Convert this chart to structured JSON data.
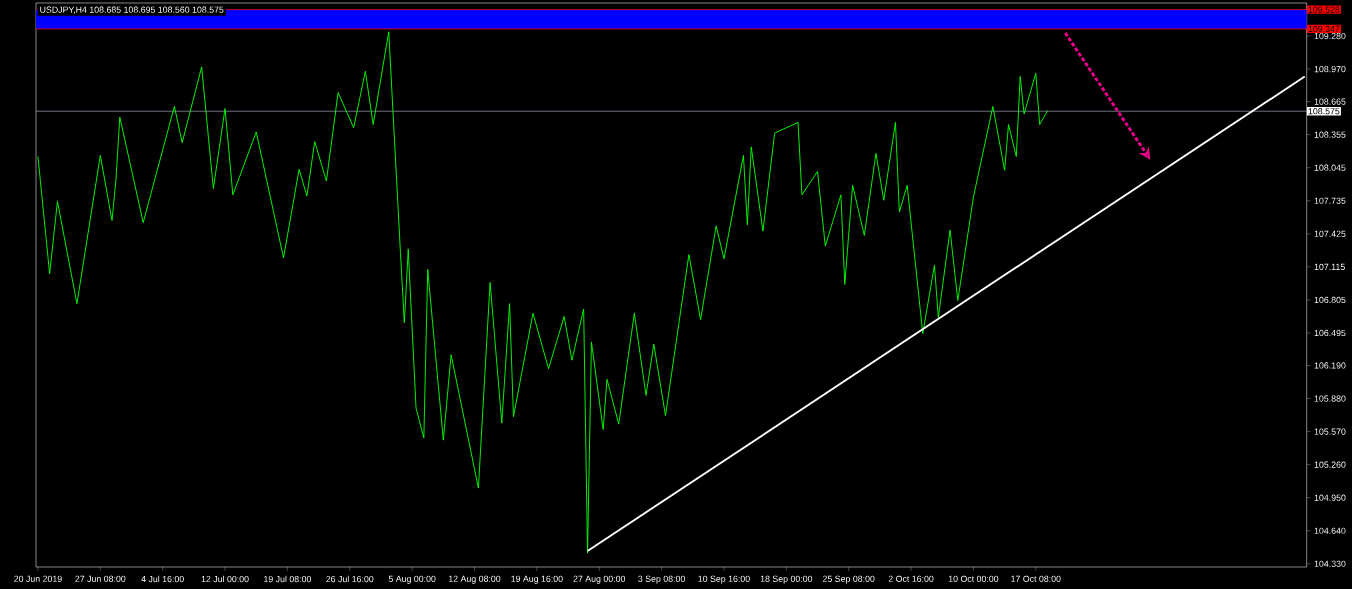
{
  "chart_data": {
    "type": "line",
    "title": "USDJPY,H4 108.685 108.695 108.560 108.575",
    "categories": [
      "20 Jun 2019",
      null,
      null,
      null,
      null,
      null,
      null,
      null,
      null,
      null,
      null,
      null,
      null,
      null,
      null,
      null,
      "27 Jun 08:00",
      null,
      null,
      null,
      null,
      null,
      null,
      null,
      null,
      null,
      null,
      null,
      null,
      null,
      null,
      null,
      "4 Jul 16:00",
      null,
      null,
      null,
      null,
      null,
      null,
      null,
      null,
      null,
      null,
      null,
      null,
      null,
      null,
      null,
      "12 Jul 00:00",
      null,
      null,
      null,
      null,
      null,
      null,
      null,
      null,
      null,
      null,
      null,
      null,
      null,
      null,
      null,
      "19 Jul 08:00",
      null,
      null,
      null,
      null,
      null,
      null,
      null,
      null,
      null,
      null,
      null,
      null,
      null,
      null,
      null,
      "26 Jul 16:00",
      null,
      null,
      null,
      null,
      null,
      null,
      null,
      null,
      null,
      null,
      null,
      null,
      null,
      null,
      null,
      "5 Aug 00:00",
      null,
      null,
      null,
      null,
      null,
      null,
      null,
      null,
      null,
      null,
      null,
      null,
      null,
      null,
      null,
      "12 Aug 08:00",
      null,
      null,
      null,
      null,
      null,
      null,
      null,
      null,
      null,
      null,
      null,
      null,
      null,
      null,
      null,
      "19 Aug 16:00",
      null,
      null,
      null,
      null,
      null,
      null,
      null,
      null,
      null,
      null,
      null,
      null,
      null,
      null,
      null,
      "27 Aug 00:00",
      null,
      null,
      null,
      null,
      null,
      null,
      null,
      null,
      null,
      null,
      null,
      null,
      null,
      null,
      null,
      "3 Sep 08:00",
      null,
      null,
      null,
      null,
      null,
      null,
      null,
      null,
      null,
      null,
      null,
      null,
      null,
      null,
      null,
      "10 Sep 16:00",
      null,
      null,
      null,
      null,
      null,
      null,
      null,
      null,
      null,
      null,
      null,
      null,
      null,
      null,
      null,
      "18 Sep 00:00",
      null,
      null,
      null,
      null,
      null,
      null,
      null,
      null,
      null,
      null,
      null,
      null,
      null,
      null,
      null,
      "25 Sep 08:00",
      null,
      null,
      null,
      null,
      null,
      null,
      null,
      null,
      null,
      null,
      null,
      null,
      null,
      null,
      null,
      "2 Oct 16:00",
      null,
      null,
      null,
      null,
      null,
      null,
      null,
      null,
      null,
      null,
      null,
      null,
      null,
      null,
      null,
      "10 Oct 00:00",
      null,
      null,
      null,
      null,
      null,
      null,
      null,
      null,
      null,
      null,
      null,
      null,
      null,
      null,
      null,
      "17 Oct 08:00",
      null,
      null,
      null,
      null,
      null,
      null,
      null,
      null,
      null,
      null,
      null,
      null,
      null,
      null,
      null,
      null,
      null,
      null,
      null,
      null,
      null,
      null,
      null,
      null,
      null,
      null,
      null,
      null,
      null,
      null,
      null,
      null,
      null,
      null,
      null,
      null,
      null,
      null,
      null,
      null,
      null,
      null,
      null,
      null,
      null,
      null,
      null,
      null,
      null,
      null,
      null,
      null,
      null,
      null,
      null,
      null,
      null,
      null,
      null,
      null,
      null,
      null,
      null,
      null,
      null,
      null,
      null,
      null,
      null
    ],
    "series": [
      {
        "color": "#00ff00",
        "values": [
          108.15,
          null,
          null,
          107.05,
          null,
          107.73,
          null,
          null,
          null,
          null,
          106.77,
          null,
          null,
          null,
          null,
          null,
          108.16,
          null,
          null,
          107.55,
          107.93,
          108.52,
          null,
          null,
          null,
          null,
          null,
          107.53,
          null,
          null,
          null,
          null,
          null,
          null,
          null,
          108.62,
          null,
          108.28,
          null,
          null,
          null,
          null,
          108.99,
          null,
          null,
          107.85,
          null,
          null,
          108.6,
          null,
          107.79,
          null,
          null,
          null,
          null,
          null,
          108.38,
          null,
          null,
          null,
          null,
          null,
          null,
          107.2,
          null,
          null,
          null,
          108.03,
          null,
          107.78,
          null,
          108.29,
          null,
          null,
          107.92,
          null,
          null,
          108.75,
          null,
          null,
          null,
          108.42,
          null,
          null,
          108.95,
          null,
          108.45,
          null,
          null,
          null,
          109.32,
          null,
          null,
          107.25,
          106.59,
          107.28,
          null,
          105.79,
          null,
          105.51,
          107.09,
          null,
          null,
          null,
          105.49,
          null,
          106.29,
          null,
          null,
          null,
          null,
          null,
          null,
          105.04,
          null,
          null,
          106.97,
          null,
          null,
          105.65,
          null,
          106.77,
          105.71,
          null,
          null,
          null,
          null,
          106.68,
          null,
          null,
          null,
          106.16,
          null,
          null,
          null,
          106.65,
          null,
          106.24,
          null,
          null,
          106.72,
          104.43,
          106.41,
          null,
          null,
          105.59,
          106.06,
          null,
          null,
          105.64,
          null,
          null,
          null,
          106.68,
          null,
          null,
          105.91,
          null,
          106.39,
          null,
          null,
          105.72,
          null,
          null,
          null,
          null,
          null,
          107.23,
          null,
          null,
          106.62,
          null,
          null,
          null,
          107.5,
          null,
          107.19,
          null,
          null,
          null,
          null,
          108.16,
          107.51,
          108.24,
          null,
          null,
          107.45,
          null,
          null,
          108.37,
          null,
          null,
          null,
          null,
          null,
          108.47,
          107.79,
          null,
          null,
          null,
          108.01,
          null,
          107.31,
          null,
          null,
          null,
          107.79,
          106.95,
          null,
          107.88,
          null,
          null,
          107.41,
          null,
          null,
          108.18,
          null,
          107.74,
          null,
          null,
          108.47,
          107.63,
          null,
          107.88,
          null,
          null,
          null,
          106.49,
          null,
          null,
          107.13,
          106.64,
          null,
          null,
          107.46,
          null,
          106.8,
          null,
          null,
          null,
          107.77,
          null,
          null,
          null,
          null,
          108.62,
          null,
          null,
          108.02,
          108.45,
          null,
          108.15,
          108.9,
          108.55,
          null,
          null,
          108.93,
          108.45,
          null,
          108.58,
          null,
          null,
          null,
          null,
          null,
          null,
          null,
          null,
          null,
          null,
          null,
          null,
          null,
          null,
          null,
          null,
          null,
          null,
          null,
          null,
          null,
          null,
          null,
          null,
          null,
          null,
          null,
          null,
          null,
          null,
          null,
          null,
          null,
          null,
          null,
          null,
          null,
          null,
          null,
          null,
          null,
          null,
          null,
          null,
          null,
          null,
          null,
          null,
          null,
          null,
          null,
          null,
          null,
          null,
          null,
          null,
          null,
          null,
          null,
          null,
          null,
          null,
          null,
          null,
          null,
          null
        ]
      },
      {
        "color": "#ffffff",
        "values": [
          null,
          null,
          null,
          null,
          null,
          null,
          null,
          null,
          null,
          null,
          null,
          null,
          null,
          null,
          null,
          null,
          null,
          null,
          null,
          null,
          null,
          null,
          null,
          null,
          null,
          null,
          null,
          null,
          null,
          null,
          null,
          null,
          null,
          null,
          null,
          null,
          null,
          null,
          null,
          null,
          null,
          null,
          null,
          null,
          null,
          null,
          null,
          null,
          null,
          null,
          null,
          null,
          null,
          null,
          null,
          null,
          null,
          null,
          null,
          null,
          null,
          null,
          null,
          null,
          null,
          null,
          null,
          null,
          null,
          null,
          null,
          null,
          null,
          null,
          null,
          null,
          null,
          null,
          null,
          null,
          null,
          null,
          null,
          null,
          null,
          null,
          null,
          null,
          null,
          null,
          null,
          null,
          null,
          null,
          null,
          null,
          null,
          null,
          null,
          null,
          null,
          null,
          null,
          null,
          null,
          null,
          null,
          null,
          null,
          null,
          null,
          null,
          null,
          null,
          null,
          null,
          null,
          null,
          null,
          null,
          null,
          null,
          null,
          null,
          null,
          null,
          null,
          null,
          null,
          null,
          null,
          null,
          null,
          null,
          null,
          null,
          null,
          null,
          null,
          null,
          null,
          104.45,
          null,
          null,
          null,
          null,
          null,
          null,
          null,
          null,
          null,
          null,
          null,
          null,
          null,
          null,
          null,
          null,
          null,
          null,
          null,
          null,
          null,
          null,
          null,
          null,
          null,
          null,
          null,
          null,
          null,
          null,
          null,
          null,
          null,
          null,
          null,
          null,
          null,
          null,
          null,
          null,
          null,
          null,
          null,
          null,
          null,
          null,
          null,
          null,
          null,
          null,
          null,
          null,
          null,
          null,
          null,
          null,
          null,
          null,
          null,
          null,
          null,
          null,
          null,
          null,
          null,
          null,
          null,
          null,
          null,
          null,
          null,
          null,
          null,
          null,
          null,
          null,
          null,
          null,
          null,
          null,
          null,
          null,
          null,
          null,
          null,
          null,
          null,
          null,
          null,
          null,
          null,
          null,
          null,
          null,
          null,
          null,
          null,
          null,
          null,
          null,
          null,
          null,
          null,
          null,
          null,
          null,
          null,
          null,
          null,
          null,
          null,
          null,
          null,
          null,
          null,
          null,
          null,
          null,
          null,
          null,
          null,
          null,
          null,
          null,
          null,
          null,
          null,
          null,
          null,
          null,
          null,
          null,
          null,
          null,
          null,
          null,
          null,
          null,
          null,
          null,
          null,
          null,
          null,
          null,
          null,
          null,
          null,
          null,
          null,
          null,
          null,
          null,
          null,
          null,
          null,
          null,
          null,
          null,
          null,
          null,
          null,
          null,
          null,
          null,
          null,
          null,
          null,
          null,
          null,
          null,
          null,
          null,
          null,
          null,
          null,
          null,
          null,
          null,
          null,
          null,
          null,
          null,
          null,
          108.9
        ]
      }
    ],
    "ylim": [
      104.3,
      109.59
    ],
    "yticks": [
      {
        "value": 104.33,
        "label": "104.330"
      },
      {
        "value": 104.64,
        "label": "104.640"
      },
      {
        "value": 104.95,
        "label": "104.950"
      },
      {
        "value": 105.26,
        "label": "105.260"
      },
      {
        "value": 105.57,
        "label": "105.570"
      },
      {
        "value": 105.88,
        "label": "105.880"
      },
      {
        "value": 106.19,
        "label": "106.190"
      },
      {
        "value": 106.495,
        "label": "106.495"
      },
      {
        "value": 106.805,
        "label": "106.805"
      },
      {
        "value": 107.115,
        "label": "107.115"
      },
      {
        "value": 107.425,
        "label": "107.425"
      },
      {
        "value": 107.735,
        "label": "107.735"
      },
      {
        "value": 108.045,
        "label": "108.045"
      },
      {
        "value": 108.355,
        "label": "108.355"
      },
      {
        "value": 108.665,
        "label": "108.665"
      },
      {
        "value": 108.97,
        "label": "108.970"
      },
      {
        "value": 109.28,
        "label": "109.280"
      }
    ],
    "bands": [
      {
        "axis": "y",
        "from": 109.347,
        "to": 109.528,
        "color": "#0000ff"
      }
    ],
    "ref_lines": [
      {
        "axis": "y",
        "value": 109.528,
        "label": "109.528",
        "color": "#ff0000"
      },
      {
        "axis": "y",
        "value": 109.347,
        "label": "109.347",
        "color": "#ff0000"
      },
      {
        "axis": "y",
        "value": 108.575,
        "label": "108.575",
        "color": "#8a8fa0"
      }
    ]
  }
}
